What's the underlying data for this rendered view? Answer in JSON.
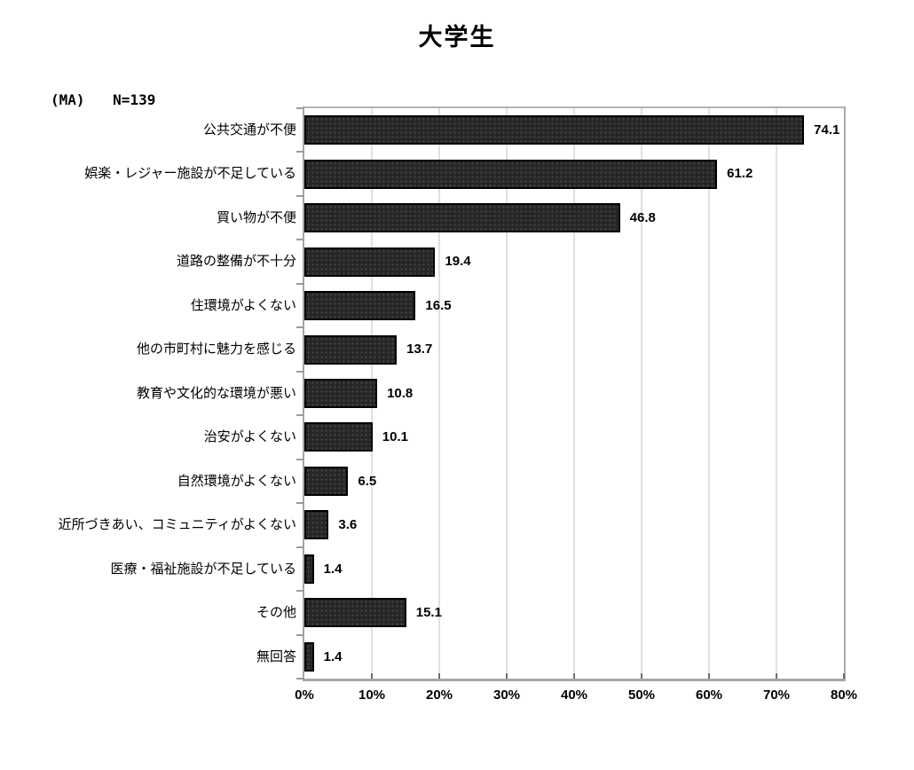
{
  "title": "大学生",
  "meta": {
    "ma": "(MA)",
    "n": "N=139"
  },
  "chart_data": {
    "type": "bar",
    "orientation": "horizontal",
    "title": "大学生",
    "note": "(MA) N=139",
    "categories": [
      "公共交通が不便",
      "娯楽・レジャー施設が不足している",
      "買い物が不便",
      "道路の整備が不十分",
      "住環境がよくない",
      "他の市町村に魅力を感じる",
      "教育や文化的な環境が悪い",
      "治安がよくない",
      "自然環境がよくない",
      "近所づきあい、コミュニティがよくない",
      "医療・福祉施設が不足している",
      "その他",
      "無回答"
    ],
    "values": [
      74.1,
      61.2,
      46.8,
      19.4,
      16.5,
      13.7,
      10.8,
      10.1,
      6.5,
      3.6,
      1.4,
      15.1,
      1.4
    ],
    "data_labels": [
      "74.1",
      "61.2",
      "46.8",
      "19.4",
      "16.5",
      "13.7",
      "10.8",
      "10.1",
      "6.5",
      "3.6",
      "1.4",
      "15.1",
      "1.4"
    ],
    "xlabel": "",
    "ylabel": "",
    "xlim": [
      0,
      80
    ],
    "x_tick_labels": [
      "0%",
      "10%",
      "20%",
      "30%",
      "40%",
      "50%",
      "60%",
      "70%",
      "80%"
    ],
    "x_tick_step": 10,
    "grid": true,
    "legend": false,
    "bar_color": "#262626",
    "bar_border_color": "#000000",
    "axis_color": "#a6a6a6",
    "gridline_color": "#e0e0e0"
  }
}
